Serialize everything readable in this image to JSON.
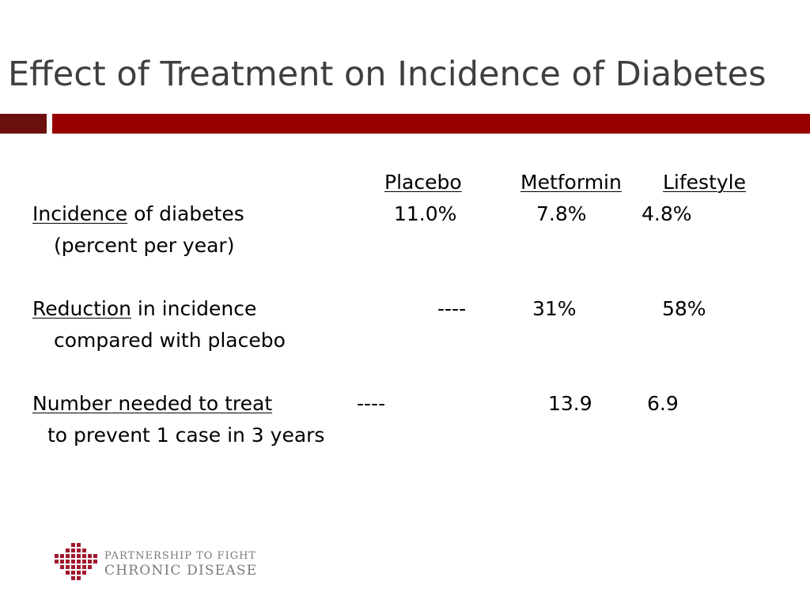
{
  "slide": {
    "title": "Effect of Treatment on Incidence of Diabetes",
    "colors": {
      "title_text": "#3f3f3f",
      "bar_dark": "#6b0f0f",
      "bar_red": "#980000",
      "logo_red": "#a0182e",
      "logo_text": "#7a7a7a"
    }
  },
  "table": {
    "headers": {
      "placebo": "Placebo",
      "metformin": "Metformin",
      "lifestyle": "Lifestyle"
    },
    "rows": [
      {
        "label_underlined": "Incidence",
        "label_rest": " of diabetes",
        "label_line2": "(percent per year)",
        "placebo": "11.0%",
        "metformin": "7.8%",
        "lifestyle": "4.8%"
      },
      {
        "label_underlined": "Reduction",
        "label_rest": " in incidence",
        "label_line2": "compared with placebo",
        "placebo": "----",
        "metformin": "31%",
        "lifestyle": "58%"
      },
      {
        "label_underlined": "Number needed to treat",
        "label_rest": "",
        "label_line2": "to prevent 1 case in 3 years",
        "placebo": "----",
        "metformin": "13.9",
        "lifestyle": "6.9"
      }
    ]
  },
  "logo": {
    "icon": "red-cross-grid-logo",
    "line1": "PARTNERSHIP TO FIGHT",
    "line2": "CHRONIC DISEASE"
  }
}
